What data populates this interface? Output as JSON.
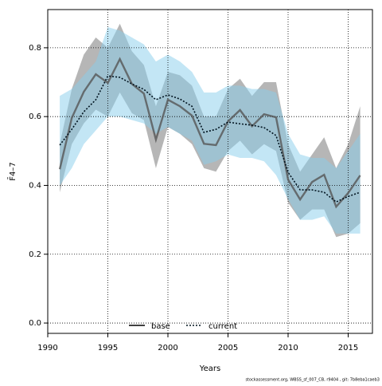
{
  "chart_data": {
    "type": "line",
    "xlabel": "Years",
    "ylabel": "F̄4–7",
    "footer": "stockassessment.org, WBSS_sf_007_CB, r9404 , git: 7b8eba1caeb3",
    "x": [
      1991,
      1992,
      1993,
      1994,
      1995,
      1996,
      1997,
      1998,
      1999,
      2000,
      2001,
      2002,
      2003,
      2004,
      2005,
      2006,
      2007,
      2008,
      2009,
      2010,
      2011,
      2012,
      2013,
      2014,
      2015,
      2016
    ],
    "series": [
      {
        "name": "base",
        "color": "#555555",
        "band_color": "rgba(110,110,110,0.5)",
        "dash": false,
        "values": [
          0.447,
          0.596,
          0.672,
          0.723,
          0.698,
          0.767,
          0.695,
          0.667,
          0.533,
          0.649,
          0.63,
          0.603,
          0.521,
          0.517,
          0.586,
          0.619,
          0.572,
          0.607,
          0.598,
          0.417,
          0.359,
          0.41,
          0.431,
          0.338,
          0.378,
          0.429
        ],
        "upper": [
          0.52,
          0.68,
          0.78,
          0.83,
          0.8,
          0.87,
          0.79,
          0.75,
          0.63,
          0.73,
          0.72,
          0.69,
          0.6,
          0.6,
          0.68,
          0.71,
          0.66,
          0.7,
          0.7,
          0.52,
          0.44,
          0.49,
          0.54,
          0.45,
          0.52,
          0.63
        ],
        "lower": [
          0.38,
          0.52,
          0.58,
          0.62,
          0.6,
          0.67,
          0.61,
          0.59,
          0.45,
          0.57,
          0.55,
          0.52,
          0.45,
          0.44,
          0.5,
          0.53,
          0.49,
          0.52,
          0.5,
          0.35,
          0.3,
          0.33,
          0.33,
          0.25,
          0.26,
          0.29
        ]
      },
      {
        "name": "current",
        "color": "#00131f",
        "band_color": "rgba(135,206,235,0.5)",
        "dash": true,
        "values": [
          0.517,
          0.563,
          0.614,
          0.649,
          0.718,
          0.714,
          0.695,
          0.679,
          0.649,
          0.663,
          0.651,
          0.63,
          0.554,
          0.563,
          0.584,
          0.579,
          0.575,
          0.568,
          0.545,
          0.438,
          0.387,
          0.387,
          0.38,
          0.352,
          0.368,
          0.38
        ],
        "upper": [
          0.66,
          0.68,
          0.72,
          0.76,
          0.86,
          0.85,
          0.83,
          0.81,
          0.76,
          0.78,
          0.76,
          0.73,
          0.67,
          0.67,
          0.69,
          0.69,
          0.68,
          0.68,
          0.67,
          0.55,
          0.49,
          0.48,
          0.48,
          0.45,
          0.5,
          0.55
        ],
        "lower": [
          0.4,
          0.45,
          0.52,
          0.56,
          0.6,
          0.6,
          0.59,
          0.58,
          0.55,
          0.57,
          0.55,
          0.53,
          0.46,
          0.47,
          0.49,
          0.48,
          0.48,
          0.47,
          0.43,
          0.36,
          0.3,
          0.3,
          0.31,
          0.26,
          0.26,
          0.26
        ]
      }
    ],
    "xlim": [
      1990,
      2017.02
    ],
    "xticks": [
      1990,
      1995,
      2000,
      2005,
      2010,
      2015
    ],
    "ylim": [
      -0.03,
      0.911
    ],
    "yticks": [
      {
        "value": 0,
        "label": "0.0"
      },
      0.2,
      0.4,
      0.6,
      0.8
    ],
    "grid": true,
    "legend": "bottom"
  }
}
